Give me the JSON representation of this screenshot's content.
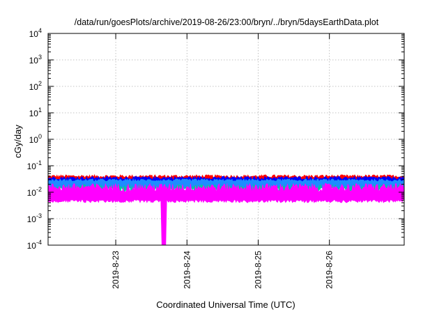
{
  "chart_data": {
    "type": "line",
    "title": "/data/run/goesPlots/archive/2019-08-26/23:00/bryn/../bryn/5daysEarthData.plot",
    "xlabel": "Coordinated Universal Time (UTC)",
    "ylabel": "cGy/day",
    "yscale": "log",
    "ylim": [
      0.0001,
      10000
    ],
    "xlim": [
      0,
      5
    ],
    "grid": true,
    "y_ticks": [
      {
        "base": "10",
        "exp": "-4"
      },
      {
        "base": "10",
        "exp": "-3"
      },
      {
        "base": "10",
        "exp": "-2"
      },
      {
        "base": "10",
        "exp": "-1"
      },
      {
        "base": "10",
        "exp": "0"
      },
      {
        "base": "10",
        "exp": "1"
      },
      {
        "base": "10",
        "exp": "2"
      },
      {
        "base": "10",
        "exp": "3"
      },
      {
        "base": "10",
        "exp": "4"
      }
    ],
    "x_ticks": [
      {
        "label": "2019-8-23",
        "x": 0.95
      },
      {
        "label": "2019-8-24",
        "x": 1.95
      },
      {
        "label": "2019-8-25",
        "x": 2.95
      },
      {
        "label": "2019-8-26",
        "x": 3.95
      }
    ],
    "series": [
      {
        "color": "#ff0000",
        "base": 0.03,
        "spread_up": 0.016,
        "spread_down": 0.012
      },
      {
        "color": "#0000ff",
        "base": 0.026,
        "spread_up": 0.014,
        "spread_down": 0.011
      },
      {
        "color": "#00c8a0",
        "base": 0.018,
        "spread_up": 0.01,
        "spread_down": 0.011
      },
      {
        "color": "#1e8cff",
        "base": 0.022,
        "spread_up": 0.01,
        "spread_down": 0.008
      },
      {
        "color": "#ff00ff",
        "base": 0.0055,
        "spread_up": 0.016,
        "spread_down": 0.0015,
        "dip_x": 1.63,
        "dip_width": 0.035,
        "dip_value": 0.0001
      }
    ]
  }
}
